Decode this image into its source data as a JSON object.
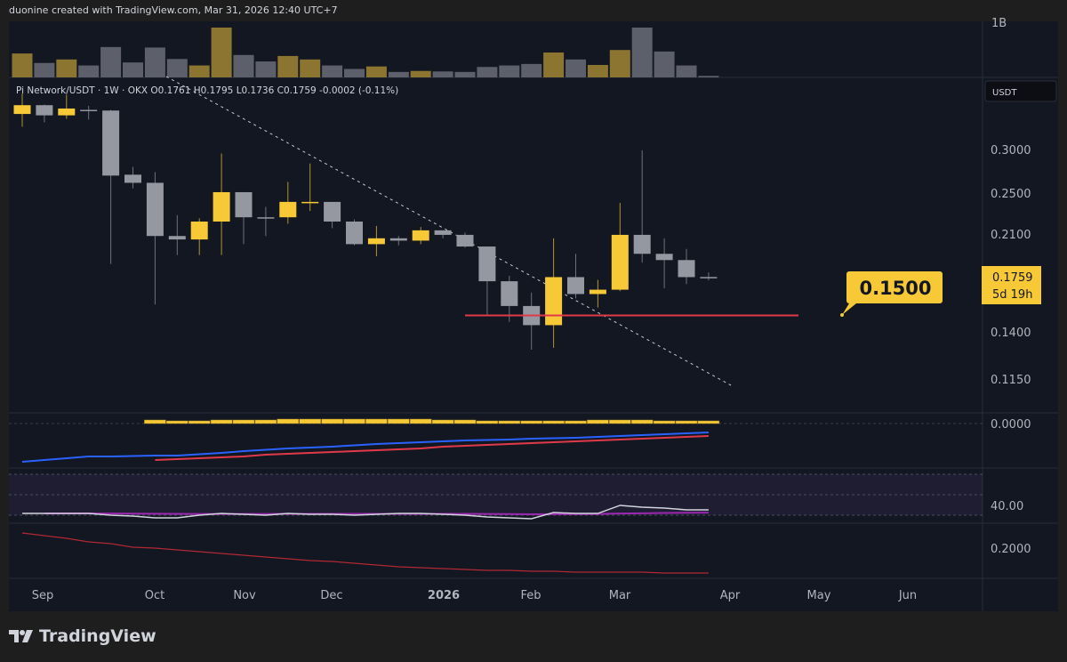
{
  "caption": "duonine created with TradingView.com, Mar 31, 2026 12:40 UTC+7",
  "legend": {
    "symbol": "Pi Network/USDT",
    "interval": "1W",
    "exchange": "OKX",
    "ohlc": "O0.1761 H0.1795 L0.1736 C0.1759 -0.0002 (-0.11%)"
  },
  "volume_scale_label": "1B",
  "currency_button": "USDT",
  "colors": {
    "up": "#f7c937",
    "down": "#9598a1",
    "vol_up": "#8b7530",
    "vol_down": "#5d606b",
    "bg": "#131722",
    "support": "#e0394a",
    "macd": "#2962ff",
    "signal": "#e0394a",
    "rsi": "#d1d4dc",
    "rsi_ma": "#9c27b0",
    "lower": "#b22833"
  },
  "price_axis": {
    "scale": "log",
    "ticks": [
      "0.3000",
      "0.2500",
      "0.2100",
      "0.1400",
      "0.1150"
    ]
  },
  "last_price": {
    "value": "0.1759",
    "countdown": "5d 19h"
  },
  "callout": {
    "label": "0.1500",
    "price": 0.15
  },
  "pane_labels": {
    "macd": "0.0000",
    "rsi": "40.00",
    "lower": "0.2000"
  },
  "time_axis": [
    {
      "label": "Sep",
      "bold": false
    },
    {
      "label": "Oct",
      "bold": false
    },
    {
      "label": "Nov",
      "bold": false
    },
    {
      "label": "Dec",
      "bold": false
    },
    {
      "label": "2026",
      "bold": true
    },
    {
      "label": "Feb",
      "bold": false
    },
    {
      "label": "Mar",
      "bold": false
    },
    {
      "label": "Apr",
      "bold": false
    },
    {
      "label": "May",
      "bold": false
    },
    {
      "label": "Jun",
      "bold": false
    }
  ],
  "chart_data": {
    "type": "candlestick",
    "ohlc": [
      [
        0.348,
        0.379,
        0.33,
        0.361
      ],
      [
        0.361,
        0.362,
        0.336,
        0.346
      ],
      [
        0.346,
        0.377,
        0.341,
        0.356
      ],
      [
        0.354,
        0.36,
        0.34,
        0.353
      ],
      [
        0.353,
        0.354,
        0.186,
        0.269
      ],
      [
        0.27,
        0.279,
        0.255,
        0.261
      ],
      [
        0.261,
        0.273,
        0.157,
        0.209
      ],
      [
        0.209,
        0.228,
        0.193,
        0.206
      ],
      [
        0.206,
        0.225,
        0.193,
        0.222
      ],
      [
        0.222,
        0.295,
        0.193,
        0.251
      ],
      [
        0.251,
        0.251,
        0.202,
        0.226
      ],
      [
        0.226,
        0.236,
        0.209,
        0.225
      ],
      [
        0.226,
        0.262,
        0.22,
        0.241
      ],
      [
        0.241,
        0.283,
        0.232,
        0.241
      ],
      [
        0.241,
        0.241,
        0.216,
        0.222
      ],
      [
        0.222,
        0.224,
        0.201,
        0.202
      ],
      [
        0.202,
        0.218,
        0.192,
        0.207
      ],
      [
        0.207,
        0.209,
        0.201,
        0.205
      ],
      [
        0.205,
        0.217,
        0.202,
        0.214
      ],
      [
        0.214,
        0.214,
        0.207,
        0.21
      ],
      [
        0.21,
        0.212,
        0.199,
        0.2
      ],
      [
        0.2,
        0.2,
        0.15,
        0.173
      ],
      [
        0.173,
        0.177,
        0.146,
        0.156
      ],
      [
        0.156,
        0.165,
        0.13,
        0.144
      ],
      [
        0.144,
        0.207,
        0.131,
        0.176
      ],
      [
        0.176,
        0.194,
        0.161,
        0.164
      ],
      [
        0.164,
        0.174,
        0.155,
        0.167
      ],
      [
        0.167,
        0.24,
        0.166,
        0.21
      ],
      [
        0.21,
        0.299,
        0.187,
        0.194
      ],
      [
        0.194,
        0.207,
        0.168,
        0.189
      ],
      [
        0.189,
        0.198,
        0.171,
        0.176
      ],
      [
        0.1761,
        0.1795,
        0.1736,
        0.1759
      ]
    ],
    "volume_billions": [
      0.48,
      0.29,
      0.36,
      0.24,
      0.61,
      0.3,
      0.6,
      0.37,
      0.24,
      1.0,
      0.45,
      0.32,
      0.43,
      0.36,
      0.24,
      0.17,
      0.22,
      0.11,
      0.13,
      0.12,
      0.11,
      0.21,
      0.24,
      0.27,
      0.5,
      0.36,
      0.25,
      0.55,
      1.0,
      0.52,
      0.24,
      0.03
    ],
    "macd_histogram": [
      null,
      null,
      null,
      null,
      null,
      null,
      0.004,
      0.003,
      0.003,
      0.004,
      0.004,
      0.004,
      0.005,
      0.005,
      0.005,
      0.005,
      0.005,
      0.005,
      0.005,
      0.004,
      0.004,
      0.003,
      0.003,
      0.003,
      0.003,
      0.003,
      0.004,
      0.004,
      0.004,
      0.003,
      0.003,
      0.003
    ],
    "macd_line": [
      -0.043,
      -0.041,
      -0.039,
      -0.037,
      -0.037,
      -0.0365,
      -0.036,
      -0.036,
      -0.0345,
      -0.033,
      -0.031,
      -0.0295,
      -0.028,
      -0.027,
      -0.026,
      -0.0245,
      -0.023,
      -0.022,
      -0.021,
      -0.02,
      -0.019,
      -0.0185,
      -0.018,
      -0.017,
      -0.0165,
      -0.016,
      -0.015,
      -0.014,
      -0.013,
      -0.012,
      -0.011,
      -0.01
    ],
    "signal_line": [
      null,
      null,
      null,
      null,
      null,
      null,
      -0.041,
      -0.04,
      -0.039,
      -0.038,
      -0.037,
      -0.035,
      -0.034,
      -0.033,
      -0.032,
      -0.031,
      -0.03,
      -0.029,
      -0.028,
      -0.026,
      -0.025,
      -0.024,
      -0.023,
      -0.022,
      -0.021,
      -0.02,
      -0.019,
      -0.018,
      -0.017,
      -0.016,
      -0.015,
      -0.014
    ],
    "rsi": [
      31.7,
      31.7,
      31.7,
      31.7,
      30.0,
      29.1,
      27.4,
      27.4,
      30.0,
      31.7,
      30.9,
      30.0,
      31.7,
      30.9,
      30.9,
      30.0,
      30.9,
      31.7,
      31.7,
      30.9,
      30.0,
      28.3,
      27.4,
      26.5,
      32.6,
      31.7,
      31.7,
      39.6,
      37.8,
      37.0,
      35.2,
      35.2
    ],
    "rsi_ma": [
      null,
      31.7,
      31.7,
      31.7,
      31.6,
      31.5,
      31.4,
      31.3,
      31.2,
      31.2,
      31.2,
      31.2,
      31.3,
      31.3,
      31.3,
      31.3,
      31.3,
      31.3,
      31.3,
      31.3,
      31.3,
      31.2,
      31.1,
      30.9,
      31.0,
      31.1,
      31.2,
      31.6,
      31.9,
      32.2,
      32.4,
      32.5
    ],
    "rsi_bands": [
      70,
      50,
      30
    ],
    "lower_line": [
      0.285,
      0.27,
      0.255,
      0.235,
      0.225,
      0.205,
      0.2,
      0.19,
      0.18,
      0.17,
      0.16,
      0.15,
      0.14,
      0.13,
      0.125,
      0.115,
      0.105,
      0.095,
      0.09,
      0.085,
      0.08,
      0.075,
      0.075,
      0.07,
      0.07,
      0.065,
      0.065,
      0.065,
      0.065,
      0.06,
      0.06,
      0.06
    ]
  }
}
